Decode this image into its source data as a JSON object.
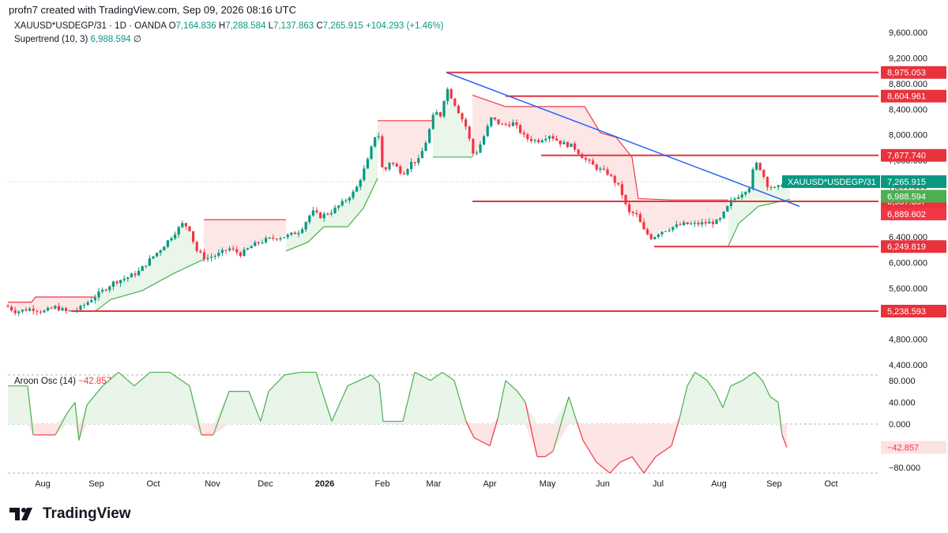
{
  "header": {
    "created_by": "profn7 created with TradingView.com, Sep 09, 2026 08:16 UTC"
  },
  "legend": {
    "symbol": "XAUUSD*USDEGP/31 · 1D · OANDA",
    "o_label": "O",
    "o_value": "7,164.836",
    "h_label": "H",
    "h_value": "7,288.584",
    "l_label": "L",
    "l_value": "7,137.863",
    "c_label": "C",
    "c_value": "7,265.915",
    "change": "+104.293 (+1.46%)",
    "supertrend_label": "Supertrend (10, 3)",
    "supertrend_value": "6,988.594",
    "supertrend_suffix": "∅",
    "aroon_label": "Aroon Osc (14)",
    "aroon_value": "−42.857"
  },
  "footer": {
    "brand": "TradingView"
  },
  "colors": {
    "up": "#089981",
    "down": "#f23645",
    "level": "#e8323c",
    "trendline": "#2962ff",
    "st_green": "#4caf50",
    "st_red": "#f23645",
    "fill_green": "#e6f4e6",
    "fill_red": "#fde2e2",
    "grid": "#9598a1"
  },
  "chart_data": [
    {
      "type": "candlestick",
      "title": "XAUUSD*USDEGP/31 · 1D · OANDA",
      "y_ticks": [
        4400,
        4800,
        5200,
        5600,
        6000,
        6400,
        6800,
        7200,
        7600,
        8000,
        8400,
        8800,
        9200,
        9600
      ],
      "y_tick_labels": [
        "4,400.000",
        "4,800.000",
        "5,200.000",
        "5,600.000",
        "6,000.000",
        "6,400.000",
        "6,800.000",
        "7,200.000",
        "7,600.000",
        "8,000.000",
        "8,400.000",
        "8,800.000",
        "9,200.000",
        "9,600.000"
      ],
      "ylim": [
        4300,
        9800
      ],
      "x_ticks": [
        "Aug",
        "Sep",
        "Oct",
        "Nov",
        "Dec",
        "2026",
        "Feb",
        "Mar",
        "Apr",
        "May",
        "Jun",
        "Jul",
        "Aug",
        "Sep",
        "Oct"
      ],
      "price_path": [
        [
          0,
          5380
        ],
        [
          20,
          5230
        ],
        [
          40,
          5280
        ],
        [
          55,
          5230
        ],
        [
          70,
          5300
        ],
        [
          85,
          5230
        ],
        [
          100,
          5270
        ],
        [
          115,
          5420
        ],
        [
          130,
          5560
        ],
        [
          145,
          5700
        ],
        [
          160,
          5760
        ],
        [
          175,
          5850
        ],
        [
          190,
          6050
        ],
        [
          205,
          6230
        ],
        [
          220,
          6450
        ],
        [
          232,
          6620
        ],
        [
          240,
          6520
        ],
        [
          248,
          6200
        ],
        [
          260,
          6060
        ],
        [
          275,
          6120
        ],
        [
          290,
          6220
        ],
        [
          305,
          6130
        ],
        [
          320,
          6270
        ],
        [
          335,
          6350
        ],
        [
          350,
          6390
        ],
        [
          365,
          6420
        ],
        [
          380,
          6500
        ],
        [
          395,
          6800
        ],
        [
          405,
          6720
        ],
        [
          420,
          6800
        ],
        [
          435,
          6950
        ],
        [
          450,
          7130
        ],
        [
          465,
          7580
        ],
        [
          478,
          8120
        ],
        [
          485,
          7350
        ],
        [
          492,
          7580
        ],
        [
          500,
          7520
        ],
        [
          510,
          7390
        ],
        [
          520,
          7560
        ],
        [
          530,
          7600
        ],
        [
          540,
          7920
        ],
        [
          550,
          8360
        ],
        [
          558,
          8300
        ],
        [
          565,
          8750
        ],
        [
          575,
          8500
        ],
        [
          590,
          8120
        ],
        [
          600,
          7650
        ],
        [
          610,
          7900
        ],
        [
          622,
          8260
        ],
        [
          635,
          8150
        ],
        [
          650,
          8180
        ],
        [
          665,
          7950
        ],
        [
          680,
          7900
        ],
        [
          695,
          8000
        ],
        [
          710,
          7870
        ],
        [
          725,
          7820
        ],
        [
          740,
          7620
        ],
        [
          755,
          7480
        ],
        [
          770,
          7390
        ],
        [
          785,
          7160
        ],
        [
          795,
          6780
        ],
        [
          805,
          6760
        ],
        [
          815,
          6500
        ],
        [
          825,
          6380
        ],
        [
          835,
          6480
        ],
        [
          850,
          6550
        ],
        [
          865,
          6600
        ],
        [
          880,
          6600
        ],
        [
          895,
          6620
        ],
        [
          910,
          6640
        ],
        [
          925,
          6950
        ],
        [
          940,
          7100
        ],
        [
          950,
          7200
        ],
        [
          955,
          7580
        ],
        [
          962,
          7480
        ],
        [
          972,
          7200
        ],
        [
          982,
          7150
        ],
        [
          995,
          7266
        ]
      ],
      "supertrend_segments": [
        {
          "color": "red",
          "points": [
            [
              10,
              5380
            ],
            [
              40,
              5380
            ],
            [
              45,
              5460
            ],
            [
              120,
              5460
            ]
          ]
        },
        {
          "color": "green",
          "points": [
            [
              120,
              5230
            ],
            [
              140,
              5420
            ],
            [
              180,
              5560
            ],
            [
              220,
              5830
            ],
            [
              258,
              6050
            ]
          ]
        },
        {
          "color": "red",
          "points": [
            [
              258,
              6670
            ],
            [
              362,
              6670
            ]
          ]
        },
        {
          "color": "green",
          "points": [
            [
              362,
              6180
            ],
            [
              390,
              6320
            ],
            [
              410,
              6560
            ],
            [
              440,
              6560
            ],
            [
              460,
              6850
            ],
            [
              478,
              7320
            ]
          ]
        },
        {
          "color": "red",
          "points": [
            [
              478,
              8220
            ],
            [
              548,
              8220
            ]
          ]
        },
        {
          "color": "green",
          "points": [
            [
              548,
              7650
            ],
            [
              598,
              7650
            ]
          ]
        },
        {
          "color": "red",
          "points": [
            [
              598,
              8620
            ],
            [
              640,
              8440
            ],
            [
              740,
              8440
            ],
            [
              760,
              8030
            ],
            [
              780,
              7960
            ],
            [
              800,
              7650
            ],
            [
              808,
              7000
            ],
            [
              850,
              6980
            ],
            [
              922,
              6980
            ]
          ]
        },
        {
          "color": "green",
          "points": [
            [
              922,
              6260
            ],
            [
              935,
              6610
            ],
            [
              960,
              6880
            ],
            [
              1000,
              6990
            ]
          ]
        }
      ],
      "trendline": {
        "from": [
          565,
          8975
        ],
        "to": [
          1012,
          6880
        ]
      },
      "levels": [
        {
          "value": 8975.053,
          "label": "8,975.053",
          "from_x": 565
        },
        {
          "value": 8604.961,
          "label": "8,604.961",
          "from_x": 640
        },
        {
          "value": 7677.74,
          "label": "7,677.740",
          "from_x": 685
        },
        {
          "value": 6957.357,
          "label": "6,957.357",
          "from_x": 598
        },
        {
          "value": 6249.819,
          "label": "6,249.819",
          "from_x": 828
        },
        {
          "value": 5238.593,
          "label": "5,238.593",
          "from_x": 90
        }
      ],
      "price_tags": [
        {
          "label": "XAUUSD*USDEGP/31",
          "value": 7265.915,
          "value_label": "7,265.915",
          "color": "#089981"
        },
        {
          "value": 6988.594,
          "value_label": "6,988.594",
          "color": "#4caf50"
        },
        {
          "value": 6889.602,
          "value_label": "6,889.602",
          "color": "#f23645"
        }
      ]
    },
    {
      "type": "area",
      "title": "Aroon Osc (14)",
      "y_ticks": [
        80,
        40,
        0,
        -80
      ],
      "y_tick_labels": [
        "80.000",
        "40.000",
        "0.000",
        "−80.000"
      ],
      "ylim": [
        -100,
        100
      ],
      "reference_lines": [
        90,
        0,
        -90
      ],
      "last_value": -42.857,
      "last_value_label": "−42.857",
      "values": [
        [
          10,
          70
        ],
        [
          35,
          70
        ],
        [
          42,
          -20
        ],
        [
          70,
          -20
        ],
        [
          85,
          20
        ],
        [
          95,
          40
        ],
        [
          100,
          -30
        ],
        [
          110,
          35
        ],
        [
          130,
          70
        ],
        [
          150,
          95
        ],
        [
          170,
          70
        ],
        [
          190,
          95
        ],
        [
          215,
          95
        ],
        [
          240,
          70
        ],
        [
          255,
          -20
        ],
        [
          270,
          -20
        ],
        [
          290,
          60
        ],
        [
          315,
          60
        ],
        [
          330,
          5
        ],
        [
          340,
          60
        ],
        [
          360,
          90
        ],
        [
          380,
          95
        ],
        [
          400,
          95
        ],
        [
          420,
          5
        ],
        [
          440,
          70
        ],
        [
          470,
          90
        ],
        [
          480,
          75
        ],
        [
          485,
          5
        ],
        [
          510,
          5
        ],
        [
          525,
          95
        ],
        [
          545,
          80
        ],
        [
          560,
          95
        ],
        [
          575,
          80
        ],
        [
          590,
          5
        ],
        [
          600,
          -25
        ],
        [
          620,
          -40
        ],
        [
          630,
          10
        ],
        [
          640,
          80
        ],
        [
          655,
          60
        ],
        [
          665,
          40
        ],
        [
          680,
          -60
        ],
        [
          690,
          -60
        ],
        [
          700,
          -50
        ],
        [
          720,
          50
        ],
        [
          730,
          5
        ],
        [
          738,
          -30
        ],
        [
          755,
          -70
        ],
        [
          772,
          -90
        ],
        [
          785,
          -70
        ],
        [
          800,
          -60
        ],
        [
          815,
          -90
        ],
        [
          830,
          -60
        ],
        [
          850,
          -40
        ],
        [
          860,
          10
        ],
        [
          870,
          70
        ],
        [
          880,
          95
        ],
        [
          895,
          80
        ],
        [
          905,
          60
        ],
        [
          915,
          30
        ],
        [
          925,
          70
        ],
        [
          940,
          80
        ],
        [
          955,
          95
        ],
        [
          965,
          80
        ],
        [
          975,
          50
        ],
        [
          985,
          40
        ],
        [
          990,
          -20
        ],
        [
          996,
          -43
        ]
      ]
    }
  ]
}
